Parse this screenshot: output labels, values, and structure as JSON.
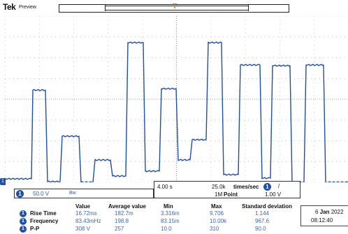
{
  "header": {
    "brand": "Tek",
    "mode": "Preview",
    "trigger_marker": "T"
  },
  "channel": {
    "badge": "1",
    "ground_marker": "1",
    "scale": "50.0 V",
    "bw_icon": "bandwidth-limit-icon",
    "bw_text": "Bw",
    "color": "#1f4fa8"
  },
  "horizontal": {
    "scale": "4.00 s",
    "sample_rate": "25.0k",
    "sample_rate_unit": "times/sec",
    "record_length": "1M",
    "record_length_unit": "Point",
    "trigger_badge": "1",
    "trigger_slope": "/",
    "trigger_level": "1.00 V"
  },
  "measurements": {
    "headers": [
      "Value",
      "Average value",
      "Min",
      "Max",
      "Standard deviation"
    ],
    "rows": [
      {
        "badge": "1",
        "label": "Rise Time",
        "values": [
          "16.72ms",
          "182.7m",
          "3.316m",
          "9.706",
          "1.144"
        ]
      },
      {
        "badge": "1",
        "label": "Frequency",
        "values": [
          "83.43mHz",
          "198.8",
          "83.15m",
          "10.00k",
          "967.6"
        ]
      },
      {
        "badge": "1",
        "label": "P-P",
        "values": [
          "308 V",
          "257",
          "10.0",
          "310",
          "90.0"
        ]
      }
    ]
  },
  "datetime": {
    "day": "6",
    "month": "Jan",
    "year": "2022",
    "time": "08:12:40"
  }
}
